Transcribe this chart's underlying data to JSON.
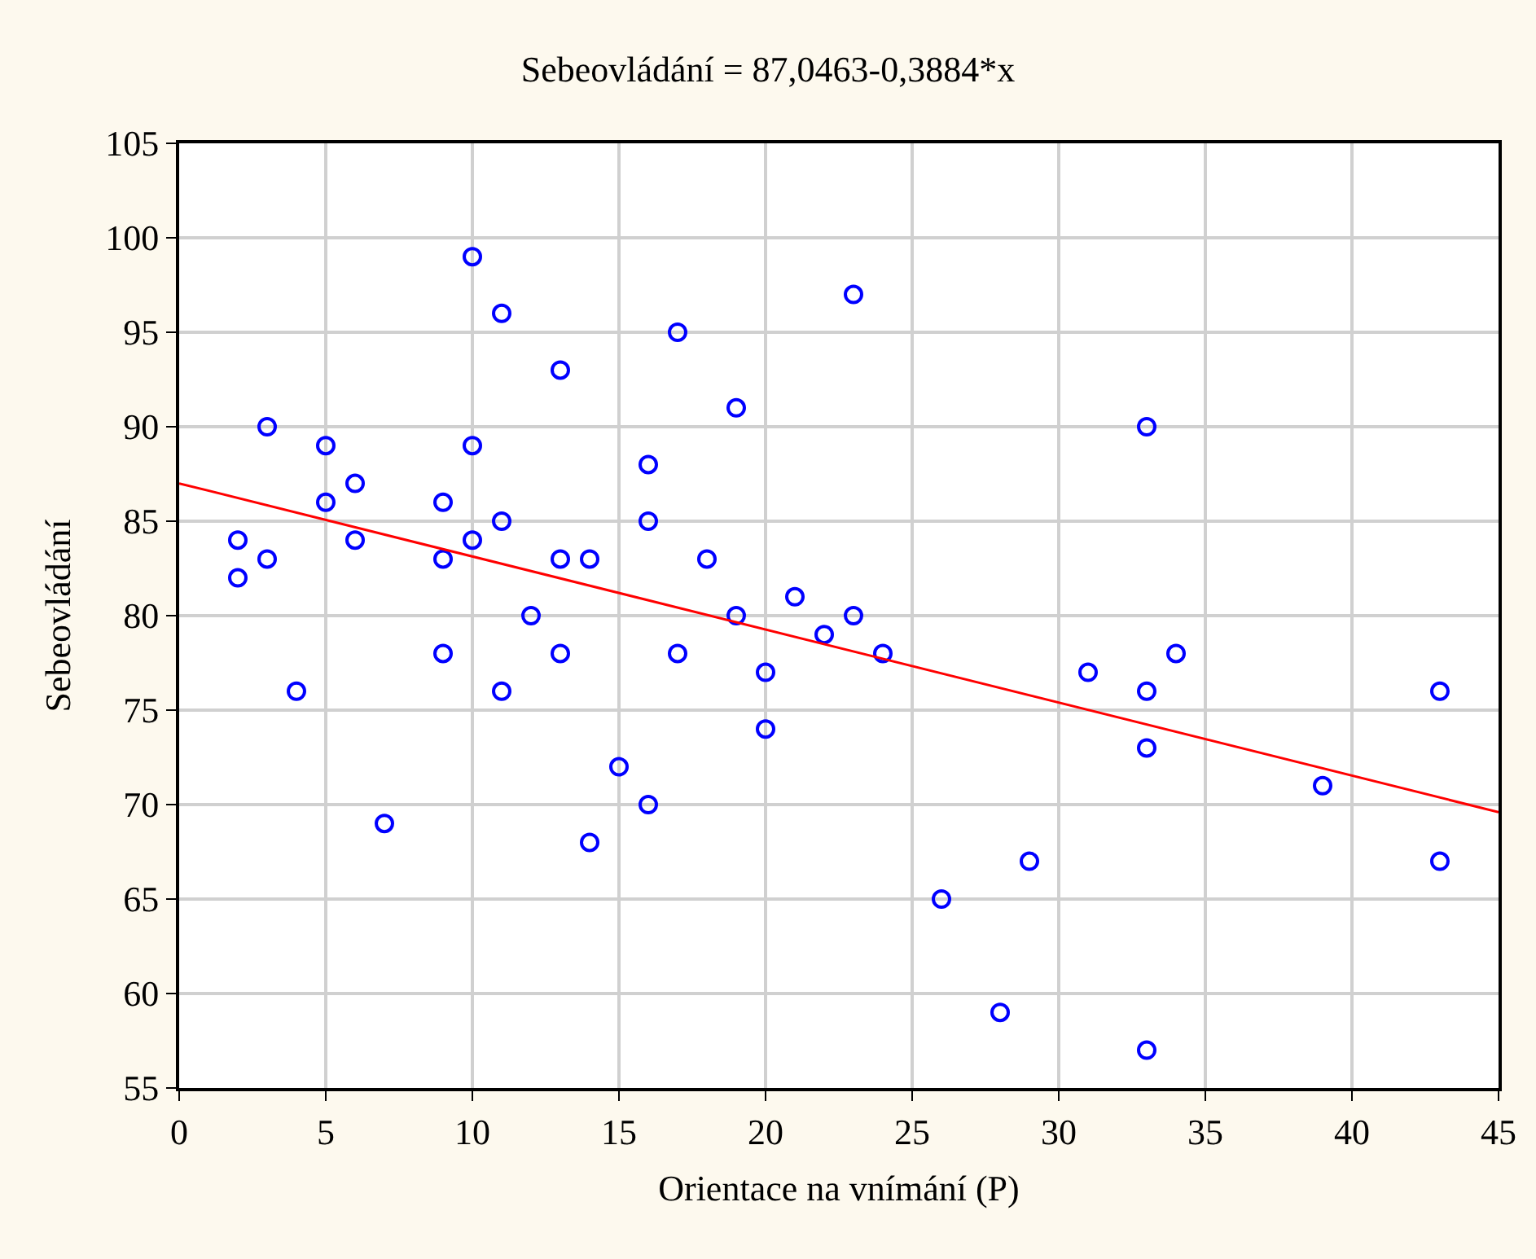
{
  "chart_data": {
    "type": "scatter",
    "title": "Sebeovládání = 87,0463-0,3884*x",
    "xlabel": "Orientace na vnímání (P)",
    "ylabel": "Sebeovládání",
    "xlim": [
      0,
      45
    ],
    "xticks": [
      0,
      5,
      10,
      15,
      20,
      25,
      30,
      35,
      40,
      45
    ],
    "ylim": [
      55,
      105
    ],
    "yticks": [
      55,
      60,
      65,
      70,
      75,
      80,
      85,
      90,
      95,
      100,
      105
    ],
    "grid": true,
    "series": [
      {
        "color": "#0000ff",
        "marker": "circle",
        "x": [
          2,
          2,
          3,
          3,
          4,
          5,
          5,
          6,
          6,
          7,
          9,
          9,
          9,
          10,
          10,
          10,
          11,
          11,
          11,
          12,
          13,
          13,
          13,
          14,
          14,
          15,
          16,
          16,
          16,
          17,
          17,
          18,
          19,
          19,
          20,
          20,
          21,
          22,
          23,
          23,
          24,
          26,
          28,
          29,
          31,
          33,
          33,
          33,
          33,
          34,
          39,
          43,
          43
        ],
        "values": [
          84,
          82,
          90,
          83,
          76,
          89,
          86,
          87,
          84,
          69,
          86,
          83,
          78,
          99,
          89,
          84,
          96,
          85,
          76,
          80,
          93,
          83,
          78,
          83,
          68,
          72,
          88,
          85,
          70,
          95,
          78,
          83,
          91,
          80,
          77,
          74,
          81,
          79,
          97,
          80,
          78,
          65,
          59,
          67,
          77,
          90,
          76,
          73,
          57,
          78,
          71,
          76,
          67
        ]
      },
      {
        "type": "line",
        "color": "#ff0000",
        "marker": "none",
        "line_style": "solid",
        "x": [
          0,
          45
        ],
        "values": [
          87.0,
          69.6
        ]
      }
    ]
  }
}
